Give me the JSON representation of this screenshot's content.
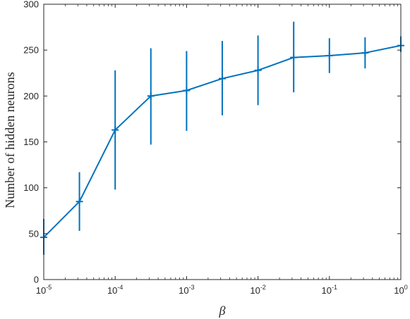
{
  "chart_data": {
    "type": "line",
    "title": "",
    "xlabel": "β",
    "ylabel": "Number of hidden neurons",
    "xscale": "log",
    "xlim": [
      1e-05,
      1
    ],
    "ylim": [
      0,
      300
    ],
    "grid": false,
    "legend": "none",
    "x_ticks": [
      {
        "base": "10",
        "exp": "-5"
      },
      {
        "base": "10",
        "exp": "-4"
      },
      {
        "base": "10",
        "exp": "-3"
      },
      {
        "base": "10",
        "exp": "-2"
      },
      {
        "base": "10",
        "exp": "-1"
      },
      {
        "base": "10",
        "exp": "0"
      }
    ],
    "x_tick_values": [
      1e-05,
      0.0001,
      0.001,
      0.01,
      0.1,
      1
    ],
    "y_ticks": [
      "0",
      "50",
      "100",
      "150",
      "200",
      "250",
      "300"
    ],
    "y_tick_values": [
      0,
      50,
      100,
      150,
      200,
      250,
      300
    ],
    "color": "#0072BD",
    "series": [
      {
        "x": [
          1e-05,
          3.16e-05,
          0.0001,
          0.000316,
          0.001,
          0.00316,
          0.01,
          0.0316,
          0.1,
          0.316,
          1
        ],
        "y": [
          46,
          85,
          163,
          200,
          206,
          219,
          228,
          242,
          244,
          247,
          255
        ],
        "err_low": [
          27,
          53,
          98,
          147,
          162,
          179,
          190,
          204,
          225,
          230,
          248
        ],
        "err_high": [
          66,
          117,
          228,
          252,
          249,
          260,
          266,
          281,
          263,
          264,
          265
        ]
      }
    ]
  }
}
